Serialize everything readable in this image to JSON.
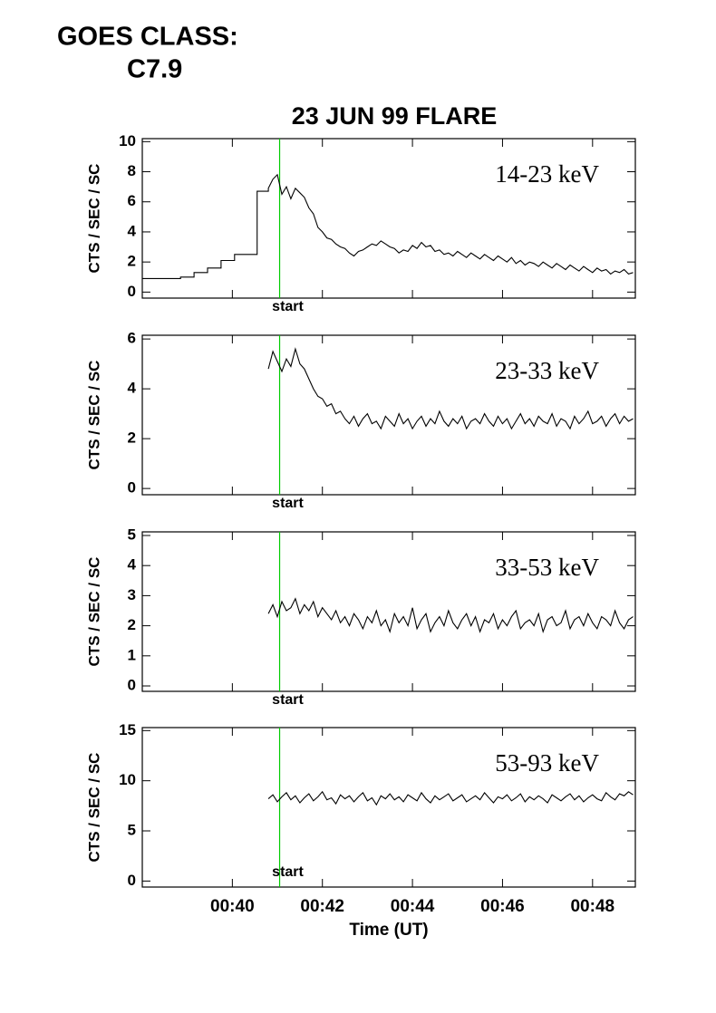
{
  "header": {
    "line1": "GOES CLASS:",
    "line2": "C7.9"
  },
  "chart_data": [
    {
      "type": "line",
      "title": "23 JUN 99 FLARE",
      "label": "14-23 keV",
      "ylabel": "CTS / SEC / SC",
      "annotation": "start",
      "start_line": 41.05,
      "line_color": "#00cc00",
      "color": "#000000",
      "xlim": [
        38,
        48.95
      ],
      "xticks": [
        40,
        42,
        44,
        46,
        48
      ],
      "ylim": [
        -0.4,
        10.2
      ],
      "yticks": [
        0,
        2,
        4,
        6,
        8,
        10
      ],
      "x": [
        38.0,
        38.85,
        38.85,
        39.15,
        39.15,
        39.45,
        39.45,
        39.75,
        39.75,
        40.05,
        40.05,
        40.55,
        40.55,
        40.8,
        40.8,
        40.9,
        41.0,
        41.1,
        41.2,
        41.3,
        41.4,
        41.5,
        41.6,
        41.7,
        41.8,
        41.9,
        42.0,
        42.1,
        42.2,
        42.3,
        42.4,
        42.5,
        42.6,
        42.7,
        42.8,
        42.9,
        43.0,
        43.1,
        43.2,
        43.3,
        43.4,
        43.5,
        43.6,
        43.7,
        43.8,
        43.9,
        44.0,
        44.1,
        44.2,
        44.3,
        44.4,
        44.5,
        44.6,
        44.7,
        44.8,
        44.9,
        45.0,
        45.1,
        45.2,
        45.3,
        45.4,
        45.5,
        45.6,
        45.7,
        45.8,
        45.9,
        46.0,
        46.1,
        46.2,
        46.3,
        46.4,
        46.5,
        46.6,
        46.7,
        46.8,
        46.9,
        47.0,
        47.1,
        47.2,
        47.3,
        47.4,
        47.5,
        47.6,
        47.7,
        47.8,
        47.9,
        48.0,
        48.1,
        48.2,
        48.3,
        48.4,
        48.5,
        48.6,
        48.7,
        48.8,
        48.9
      ],
      "values": [
        0.9,
        0.9,
        1.0,
        1.0,
        1.3,
        1.3,
        1.6,
        1.6,
        2.1,
        2.1,
        2.5,
        2.5,
        6.7,
        6.7,
        6.9,
        7.5,
        7.8,
        6.5,
        7.0,
        6.2,
        6.9,
        6.6,
        6.3,
        5.6,
        5.2,
        4.3,
        4.0,
        3.6,
        3.5,
        3.2,
        3.0,
        2.9,
        2.6,
        2.4,
        2.7,
        2.8,
        3.0,
        3.2,
        3.1,
        3.4,
        3.2,
        3.0,
        2.9,
        2.6,
        2.8,
        2.7,
        3.1,
        2.9,
        3.3,
        3.0,
        3.1,
        2.7,
        2.8,
        2.5,
        2.6,
        2.4,
        2.7,
        2.5,
        2.3,
        2.6,
        2.4,
        2.2,
        2.5,
        2.3,
        2.1,
        2.4,
        2.2,
        2.0,
        2.3,
        1.9,
        2.1,
        1.8,
        2.0,
        1.9,
        1.7,
        2.0,
        1.8,
        1.6,
        1.9,
        1.7,
        1.5,
        1.8,
        1.6,
        1.4,
        1.7,
        1.5,
        1.3,
        1.6,
        1.4,
        1.5,
        1.2,
        1.4,
        1.3,
        1.5,
        1.2,
        1.3
      ]
    },
    {
      "type": "line",
      "label": "23-33 keV",
      "ylabel": "CTS / SEC / SC",
      "annotation": "start",
      "start_line": 41.05,
      "line_color": "#00cc00",
      "color": "#000000",
      "xlim": [
        38,
        48.95
      ],
      "xticks": [
        40,
        42,
        44,
        46,
        48
      ],
      "ylim": [
        -0.25,
        6.15
      ],
      "yticks": [
        0,
        2,
        4,
        6
      ],
      "x": [
        40.8,
        40.9,
        41.0,
        41.1,
        41.2,
        41.3,
        41.4,
        41.5,
        41.6,
        41.7,
        41.8,
        41.9,
        42.0,
        42.1,
        42.2,
        42.3,
        42.4,
        42.5,
        42.6,
        42.7,
        42.8,
        42.9,
        43.0,
        43.1,
        43.2,
        43.3,
        43.4,
        43.5,
        43.6,
        43.7,
        43.8,
        43.9,
        44.0,
        44.1,
        44.2,
        44.3,
        44.4,
        44.5,
        44.6,
        44.7,
        44.8,
        44.9,
        45.0,
        45.1,
        45.2,
        45.3,
        45.4,
        45.5,
        45.6,
        45.7,
        45.8,
        45.9,
        46.0,
        46.1,
        46.2,
        46.3,
        46.4,
        46.5,
        46.6,
        46.7,
        46.8,
        46.9,
        47.0,
        47.1,
        47.2,
        47.3,
        47.4,
        47.5,
        47.6,
        47.7,
        47.8,
        47.9,
        48.0,
        48.1,
        48.2,
        48.3,
        48.4,
        48.5,
        48.6,
        48.7,
        48.8,
        48.9
      ],
      "values": [
        4.8,
        5.5,
        5.1,
        4.7,
        5.2,
        4.9,
        5.6,
        5.0,
        4.8,
        4.4,
        4.0,
        3.7,
        3.6,
        3.3,
        3.4,
        3.0,
        3.1,
        2.8,
        2.6,
        2.9,
        2.5,
        2.8,
        3.0,
        2.6,
        2.7,
        2.4,
        2.9,
        2.7,
        2.5,
        3.0,
        2.6,
        2.8,
        2.4,
        2.7,
        2.9,
        2.5,
        2.8,
        2.6,
        3.1,
        2.7,
        2.5,
        2.8,
        2.6,
        2.9,
        2.4,
        2.7,
        2.8,
        2.6,
        3.0,
        2.7,
        2.5,
        2.9,
        2.6,
        2.8,
        2.4,
        2.7,
        3.0,
        2.6,
        2.8,
        2.5,
        2.9,
        2.7,
        2.6,
        3.0,
        2.5,
        2.8,
        2.7,
        2.4,
        2.9,
        2.6,
        2.8,
        3.1,
        2.6,
        2.7,
        2.9,
        2.5,
        2.8,
        3.0,
        2.6,
        2.9,
        2.7,
        2.8
      ]
    },
    {
      "type": "line",
      "label": "33-53 keV",
      "ylabel": "CTS / SEC / SC",
      "annotation": "start",
      "start_line": 41.05,
      "line_color": "#00cc00",
      "color": "#000000",
      "xlim": [
        38,
        48.95
      ],
      "xticks": [
        40,
        42,
        44,
        46,
        48
      ],
      "ylim": [
        -0.18,
        5.12
      ],
      "yticks": [
        0,
        1,
        2,
        3,
        4,
        5
      ],
      "x": [
        40.8,
        40.9,
        41.0,
        41.1,
        41.2,
        41.3,
        41.4,
        41.5,
        41.6,
        41.7,
        41.8,
        41.9,
        42.0,
        42.1,
        42.2,
        42.3,
        42.4,
        42.5,
        42.6,
        42.7,
        42.8,
        42.9,
        43.0,
        43.1,
        43.2,
        43.3,
        43.4,
        43.5,
        43.6,
        43.7,
        43.8,
        43.9,
        44.0,
        44.1,
        44.2,
        44.3,
        44.4,
        44.5,
        44.6,
        44.7,
        44.8,
        44.9,
        45.0,
        45.1,
        45.2,
        45.3,
        45.4,
        45.5,
        45.6,
        45.7,
        45.8,
        45.9,
        46.0,
        46.1,
        46.2,
        46.3,
        46.4,
        46.5,
        46.6,
        46.7,
        46.8,
        46.9,
        47.0,
        47.1,
        47.2,
        47.3,
        47.4,
        47.5,
        47.6,
        47.7,
        47.8,
        47.9,
        48.0,
        48.1,
        48.2,
        48.3,
        48.4,
        48.5,
        48.6,
        48.7,
        48.8,
        48.9
      ],
      "values": [
        2.4,
        2.7,
        2.3,
        2.8,
        2.5,
        2.6,
        2.9,
        2.4,
        2.7,
        2.5,
        2.8,
        2.3,
        2.6,
        2.4,
        2.2,
        2.5,
        2.1,
        2.3,
        2.0,
        2.4,
        2.2,
        1.9,
        2.3,
        2.1,
        2.5,
        2.0,
        2.2,
        1.8,
        2.4,
        2.1,
        2.3,
        2.0,
        2.6,
        1.9,
        2.2,
        2.4,
        1.8,
        2.1,
        2.3,
        2.0,
        2.5,
        2.1,
        1.9,
        2.2,
        2.4,
        2.0,
        2.3,
        1.8,
        2.2,
        2.1,
        2.4,
        1.9,
        2.2,
        2.0,
        2.3,
        2.5,
        1.9,
        2.1,
        2.2,
        2.0,
        2.4,
        1.8,
        2.2,
        2.3,
        2.0,
        2.1,
        2.5,
        1.9,
        2.2,
        2.3,
        2.0,
        2.4,
        2.1,
        1.9,
        2.3,
        2.2,
        2.0,
        2.5,
        2.1,
        1.9,
        2.2,
        2.3
      ]
    },
    {
      "type": "line",
      "label": "53-93 keV",
      "ylabel": "CTS / SEC / SC",
      "annotation": "start",
      "start_line": 41.05,
      "line_color": "#00cc00",
      "color": "#000000",
      "xlabel": "Time (UT)",
      "xlim": [
        38,
        48.95
      ],
      "xticks": [
        {
          "value": 40,
          "label": "00:40"
        },
        {
          "value": 42,
          "label": "00:42"
        },
        {
          "value": 44,
          "label": "00:44"
        },
        {
          "value": 46,
          "label": "00:46"
        },
        {
          "value": 48,
          "label": "00:48"
        }
      ],
      "ylim": [
        -0.6,
        15.3
      ],
      "yticks": [
        0,
        5,
        10,
        15
      ],
      "x": [
        40.8,
        40.9,
        41.0,
        41.1,
        41.2,
        41.3,
        41.4,
        41.5,
        41.6,
        41.7,
        41.8,
        41.9,
        42.0,
        42.1,
        42.2,
        42.3,
        42.4,
        42.5,
        42.6,
        42.7,
        42.8,
        42.9,
        43.0,
        43.1,
        43.2,
        43.3,
        43.4,
        43.5,
        43.6,
        43.7,
        43.8,
        43.9,
        44.0,
        44.1,
        44.2,
        44.3,
        44.4,
        44.5,
        44.6,
        44.7,
        44.8,
        44.9,
        45.0,
        45.1,
        45.2,
        45.3,
        45.4,
        45.5,
        45.6,
        45.7,
        45.8,
        45.9,
        46.0,
        46.1,
        46.2,
        46.3,
        46.4,
        46.5,
        46.6,
        46.7,
        46.8,
        46.9,
        47.0,
        47.1,
        47.2,
        47.3,
        47.4,
        47.5,
        47.6,
        47.7,
        47.8,
        47.9,
        48.0,
        48.1,
        48.2,
        48.3,
        48.4,
        48.5,
        48.6,
        48.7,
        48.8,
        48.9
      ],
      "values": [
        8.2,
        8.6,
        7.9,
        8.4,
        8.8,
        8.1,
        8.5,
        7.8,
        8.3,
        8.7,
        8.0,
        8.4,
        8.9,
        8.1,
        8.3,
        7.7,
        8.6,
        8.2,
        8.5,
        7.9,
        8.4,
        8.8,
        8.0,
        8.3,
        7.6,
        8.5,
        8.2,
        8.7,
        8.1,
        8.4,
        7.9,
        8.6,
        8.3,
        8.0,
        8.8,
        8.2,
        7.8,
        8.5,
        8.1,
        8.4,
        8.7,
        8.0,
        8.3,
        8.6,
        7.9,
        8.2,
        8.5,
        8.1,
        8.8,
        8.3,
        7.8,
        8.4,
        8.2,
        8.6,
        8.0,
        8.3,
        8.7,
        7.9,
        8.4,
        8.1,
        8.5,
        8.2,
        7.8,
        8.6,
        8.3,
        8.0,
        8.4,
        8.7,
        8.1,
        8.5,
        7.9,
        8.3,
        8.6,
        8.2,
        8.0,
        8.8,
        8.4,
        8.1,
        8.7,
        8.5,
        8.9,
        8.6
      ]
    }
  ]
}
